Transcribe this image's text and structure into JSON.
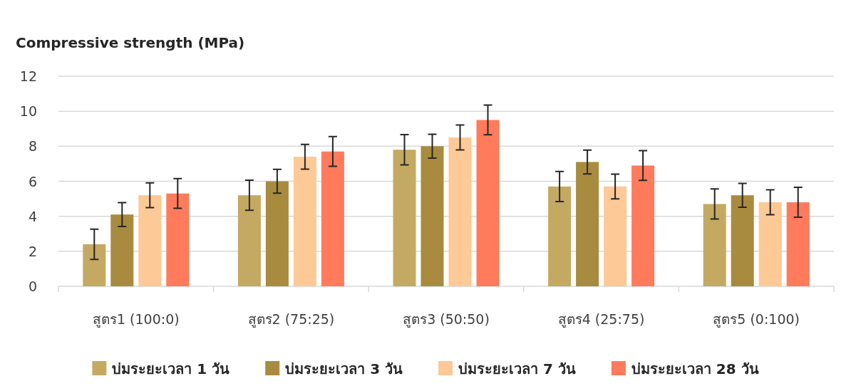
{
  "chart_data": {
    "type": "bar",
    "ylabel": "Compressive strength (MPa)",
    "categories": [
      "สูตร1 (100:0)",
      "สูตร2 (75:25)",
      "สูตร3 (50:50)",
      "สูตร4 (25:75)",
      "สูตร5 (0:100)"
    ],
    "series": [
      {
        "name": "บ่มระยะเวลา 1 วัน",
        "color": "#c4a962",
        "values": [
          2.4,
          5.2,
          7.8,
          5.7,
          4.7
        ],
        "errors": [
          0.86,
          0.86,
          0.86,
          0.86,
          0.86
        ]
      },
      {
        "name": "บ่มระยะเวลา 3 วัน",
        "color": "#a98b3f",
        "values": [
          4.1,
          6.0,
          8.0,
          7.1,
          5.2
        ],
        "errors": [
          0.68,
          0.68,
          0.68,
          0.68,
          0.68
        ]
      },
      {
        "name": "บ่มระยะเวลา 7 วัน",
        "color": "#fdc996",
        "values": [
          5.2,
          7.4,
          8.5,
          5.7,
          4.8
        ],
        "errors": [
          0.71,
          0.71,
          0.71,
          0.71,
          0.71
        ]
      },
      {
        "name": "บ่มระยะเวลา 28 วัน",
        "color": "#ff7b5c",
        "values": [
          5.3,
          7.7,
          9.5,
          6.9,
          4.8
        ],
        "errors": [
          0.85,
          0.85,
          0.85,
          0.85,
          0.85
        ]
      }
    ],
    "ylim": [
      0,
      12
    ],
    "yticks": [
      0,
      2,
      4,
      6,
      8,
      10,
      12
    ],
    "grid": "y",
    "legend": "bottom"
  }
}
